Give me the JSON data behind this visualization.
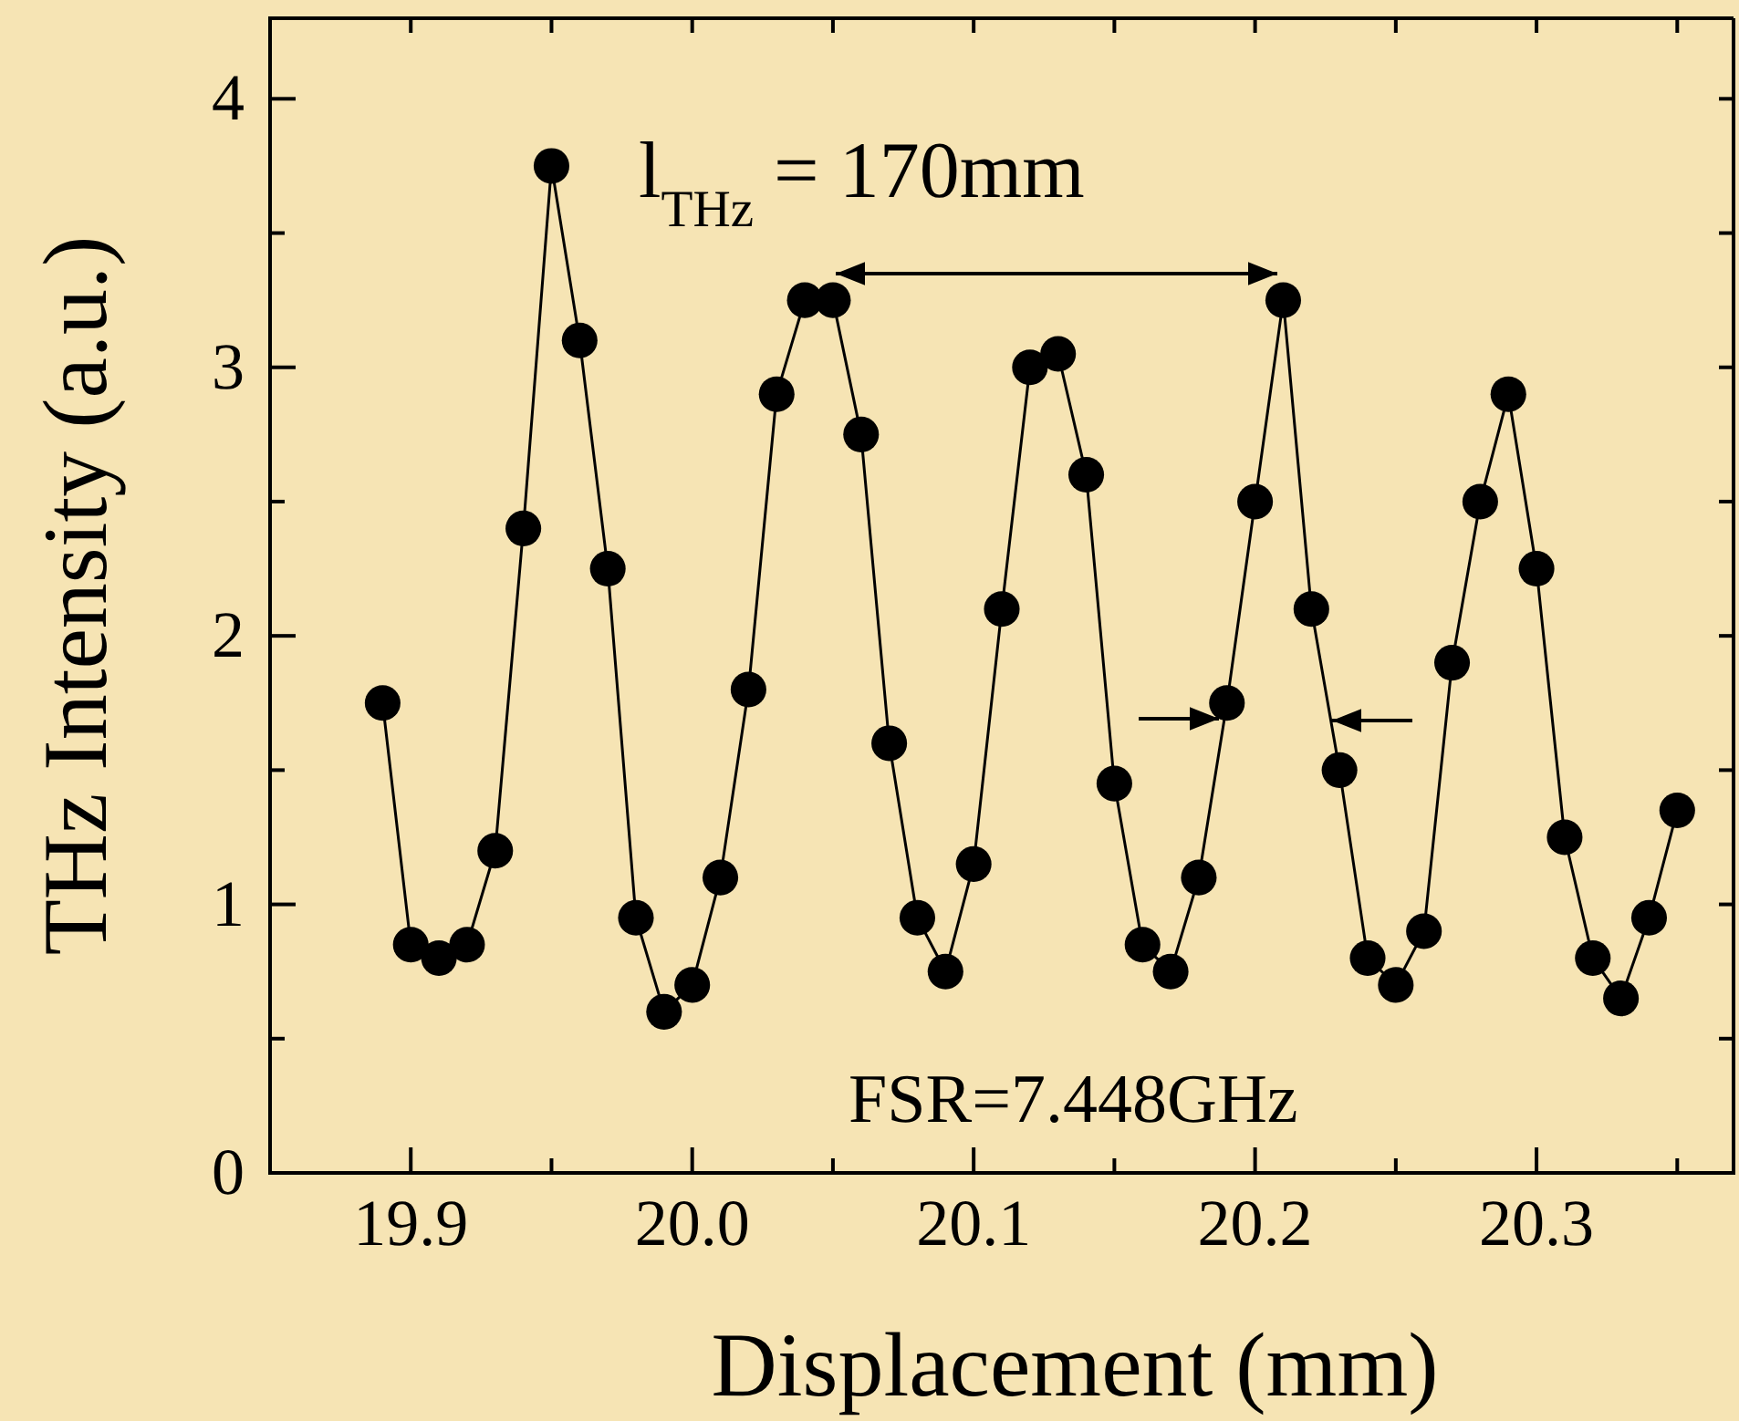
{
  "chart_data": {
    "type": "line",
    "xlabel": "Displacement (mm)",
    "ylabel": "THz Intensity (a.u.)",
    "x": [
      19.89,
      19.9,
      19.91,
      19.92,
      19.93,
      19.94,
      19.95,
      19.96,
      19.97,
      19.98,
      19.99,
      20.0,
      20.01,
      20.02,
      20.03,
      20.04,
      20.05,
      20.06,
      20.07,
      20.08,
      20.09,
      20.1,
      20.11,
      20.12,
      20.13,
      20.14,
      20.15,
      20.16,
      20.17,
      20.18,
      20.19,
      20.2,
      20.21,
      20.22,
      20.23,
      20.24,
      20.25,
      20.26,
      20.27,
      20.28,
      20.29,
      20.3,
      20.31,
      20.32,
      20.33,
      20.34,
      20.35
    ],
    "series": [
      {
        "color": "#000000",
        "values": [
          1.75,
          0.85,
          0.8,
          0.85,
          1.2,
          2.4,
          3.75,
          3.1,
          2.25,
          0.95,
          0.6,
          0.7,
          1.1,
          1.8,
          2.9,
          3.25,
          3.25,
          2.75,
          1.6,
          0.95,
          0.75,
          1.15,
          2.1,
          3.0,
          3.05,
          2.6,
          1.45,
          0.85,
          0.75,
          1.1,
          1.75,
          2.5,
          3.25,
          2.1,
          1.5,
          0.8,
          0.7,
          0.9,
          1.9,
          2.5,
          2.9,
          2.25,
          1.25,
          0.8,
          0.65,
          0.95,
          1.35
        ]
      }
    ],
    "xlim": [
      19.85,
      20.37
    ],
    "xticks": [
      {
        "value": 19.85,
        "label": null
      },
      19.9,
      {
        "value": 19.95,
        "label": null
      },
      {
        "value": 20,
        "label": "20.0"
      },
      {
        "value": 20.05,
        "label": null
      },
      20.1,
      {
        "value": 20.15,
        "label": null
      },
      20.2,
      {
        "value": 20.25,
        "label": null
      },
      20.3,
      {
        "value": 20.35,
        "label": null
      }
    ],
    "ylim": [
      0,
      4.3
    ],
    "yticks": [
      0,
      {
        "value": 0.5,
        "label": null
      },
      1,
      {
        "value": 1.5,
        "label": null
      },
      2,
      {
        "value": 2.5,
        "label": null
      },
      3,
      {
        "value": 3.5,
        "label": null
      },
      4
    ],
    "marker": "circle",
    "line_style": "solid",
    "grid": false,
    "annotations": [
      "l$_{THz}$ = 170mm",
      "FSR=7.448GHz"
    ]
  }
}
